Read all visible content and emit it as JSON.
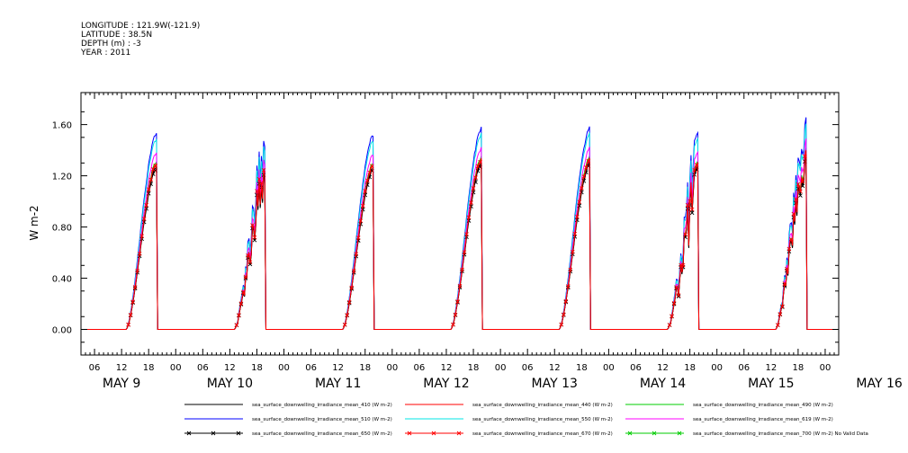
{
  "header": {
    "longitude": "LONGITUDE : 121.9W(-121.9)",
    "latitude": "LATITUDE : 38.5N",
    "depth": "DEPTH (m) : -3",
    "year": "YEAR : 2011"
  },
  "chart_data": {
    "type": "line",
    "ylabel": "W m-2",
    "ylim": [
      -0.2,
      1.85
    ],
    "yticks": [
      0.0,
      0.4,
      0.8,
      1.2,
      1.6
    ],
    "ytick_labels": [
      "0.00",
      "0.40",
      "0.80",
      "1.20",
      "1.60"
    ],
    "x_hours_labels": [
      "06",
      "12",
      "18",
      "00",
      "06",
      "12",
      "18",
      "00",
      "06",
      "12",
      "18",
      "00",
      "06",
      "12",
      "18",
      "00",
      "06",
      "12",
      "18",
      "00",
      "06",
      "12",
      "18",
      "00",
      "06",
      "12",
      "18",
      "00"
    ],
    "x_day_labels": [
      "MAY  9",
      "MAY 10",
      "MAY 11",
      "MAY 12",
      "MAY 13",
      "MAY 14",
      "MAY 15",
      "MAY 16"
    ],
    "days": [
      {
        "date": "2011-05-09",
        "noon_peak": 1.57
      },
      {
        "date": "2011-05-10",
        "noon_peak": 1.57
      },
      {
        "date": "2011-05-11",
        "noon_peak": 1.55
      },
      {
        "date": "2011-05-12",
        "noon_peak": 1.6
      },
      {
        "date": "2011-05-13",
        "noon_peak": 1.6
      },
      {
        "date": "2011-05-14",
        "noon_peak": 1.58
      },
      {
        "date": "2011-05-15",
        "noon_peak": 1.69
      }
    ],
    "series": [
      {
        "name": "sea_surface_downwelling_irradiance_mean_410 (W m-2)",
        "color": "#000000",
        "scale": 0.83
      },
      {
        "name": "sea_surface_downwelling_irradiance_mean_440 (W m-2)",
        "color": "#ff0000",
        "scale": 0.84
      },
      {
        "name": "sea_surface_downwelling_irradiance_mean_490 (W m-2)",
        "color": "#00cc00",
        "scale": 0.855
      },
      {
        "name": "sea_surface_downwelling_irradiance_mean_510 (W m-2)",
        "color": "#0000ff",
        "scale": 1.0
      },
      {
        "name": "sea_surface_downwelling_irradiance_mean_550 (W m-2)",
        "color": "#00e5e5",
        "scale": 0.97
      },
      {
        "name": "sea_surface_downwelling_irradiance_mean_619 (W m-2)",
        "color": "#ff00ff",
        "scale": 0.9
      },
      {
        "name": "sea_surface_downwelling_irradiance_mean_650 (W m-2)",
        "color": "#000000",
        "scale": 0.82,
        "marker": "x"
      },
      {
        "name": "sea_surface_downwelling_irradiance_mean_670 (W m-2)",
        "color": "#ff0000",
        "scale": 0.845,
        "marker": "x"
      },
      {
        "name": "sea_surface_downwelling_irradiance_mean_700 (W m-2) No Valid Data",
        "color": "#00cc00",
        "scale": 0,
        "marker": "x"
      }
    ]
  }
}
